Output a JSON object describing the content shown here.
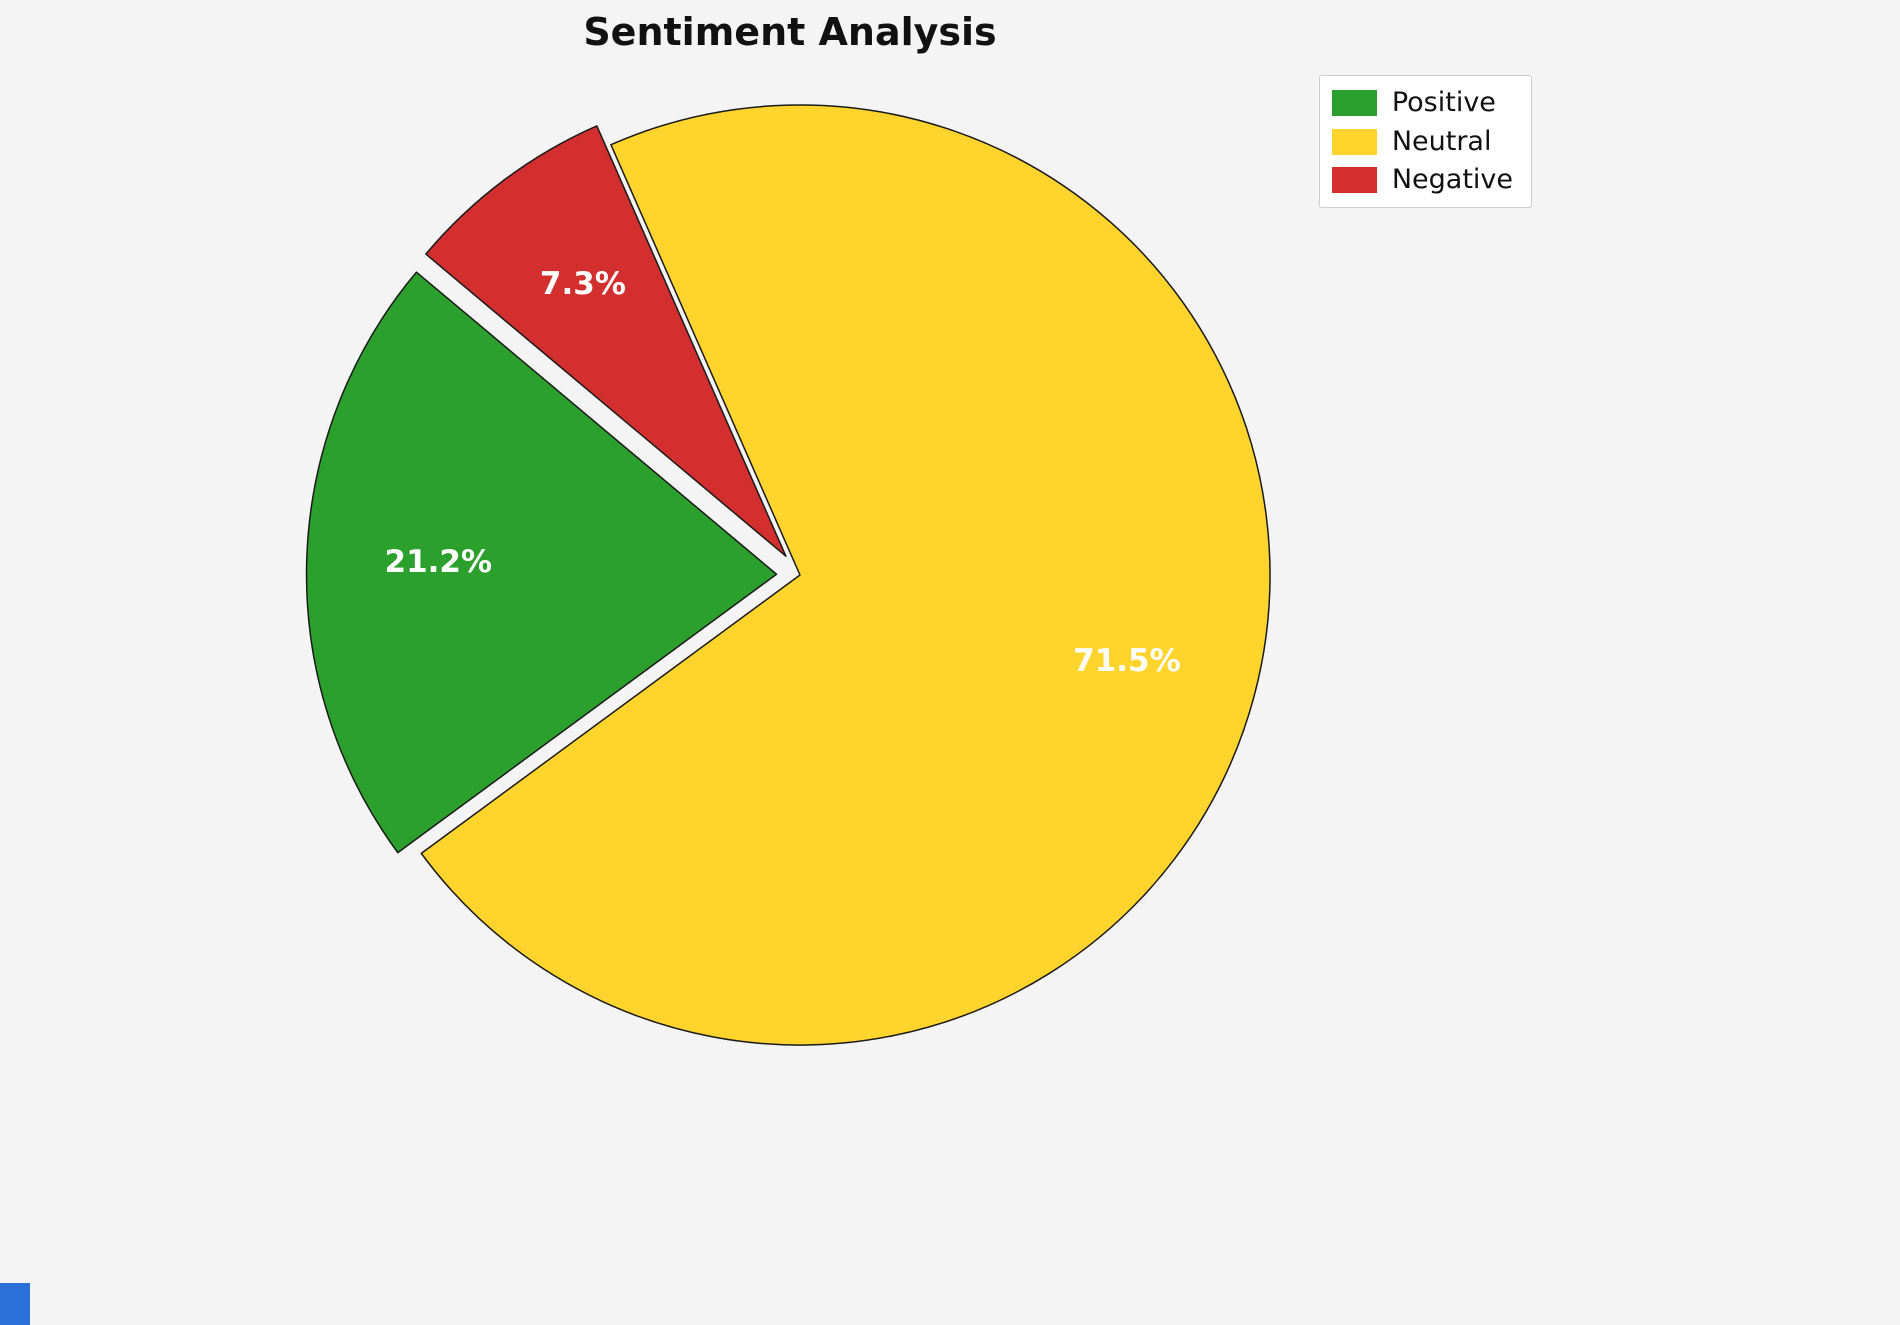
{
  "title": "Sentiment Analysis",
  "chart_data": {
    "type": "pie",
    "title": "Sentiment Analysis",
    "labels": [
      "Positive",
      "Neutral",
      "Negative"
    ],
    "values": [
      21.2,
      71.5,
      7.3
    ],
    "pct_labels": [
      "21.2%",
      "71.5%",
      "7.3%"
    ],
    "colors": [
      "#2ca02c",
      "#ffd42c",
      "#d32f2f"
    ],
    "explode": [
      0.05,
      0,
      0.05
    ],
    "start_angle": 140,
    "counterclock": true,
    "edge_color": "#1a1a1a",
    "label_text_color": "#ffffff",
    "legend_position": "upper right",
    "legend_entries": [
      "Positive",
      "Neutral",
      "Negative"
    ]
  },
  "accent": {
    "corner_color": "#2a70d8"
  }
}
